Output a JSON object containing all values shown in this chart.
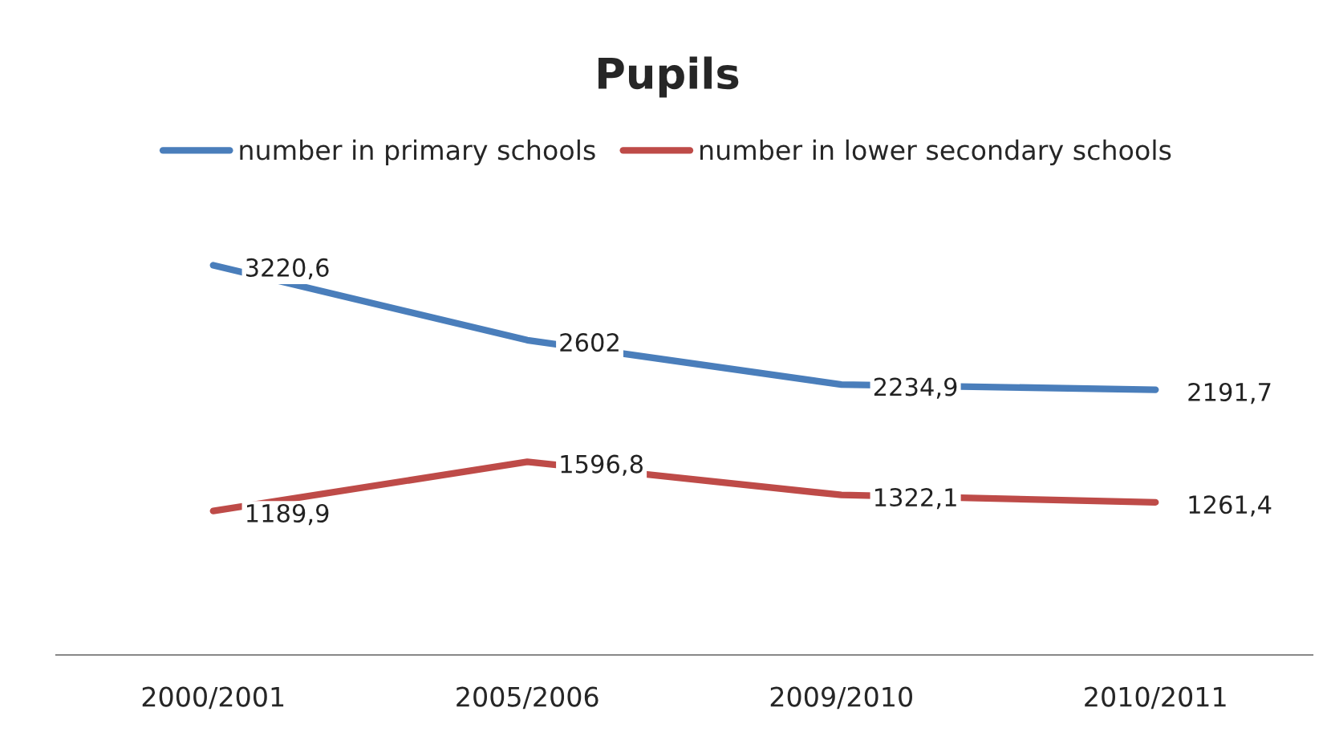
{
  "chart_data": {
    "type": "line",
    "title": "Pupils",
    "categories": [
      "2000/2001",
      "2005/2006",
      "2009/2010",
      "2010/2011"
    ],
    "series": [
      {
        "name": "number in primary schools",
        "color": "#4a7ebb",
        "values": [
          3220.6,
          2602,
          2234.9,
          2191.7
        ],
        "value_labels": [
          "3220,6",
          "2602",
          "2234,9",
          "2191,7"
        ]
      },
      {
        "name": "number in lower secondary schools",
        "color": "#be4b48",
        "values": [
          1189.9,
          1596.8,
          1322.1,
          1261.4
        ],
        "value_labels": [
          "1189,9",
          "1596,8",
          "1322,1",
          "1261,4"
        ]
      }
    ],
    "tick_labels": "x",
    "grid": false,
    "legend": "top",
    "marker": "none",
    "line_style": "solid"
  }
}
